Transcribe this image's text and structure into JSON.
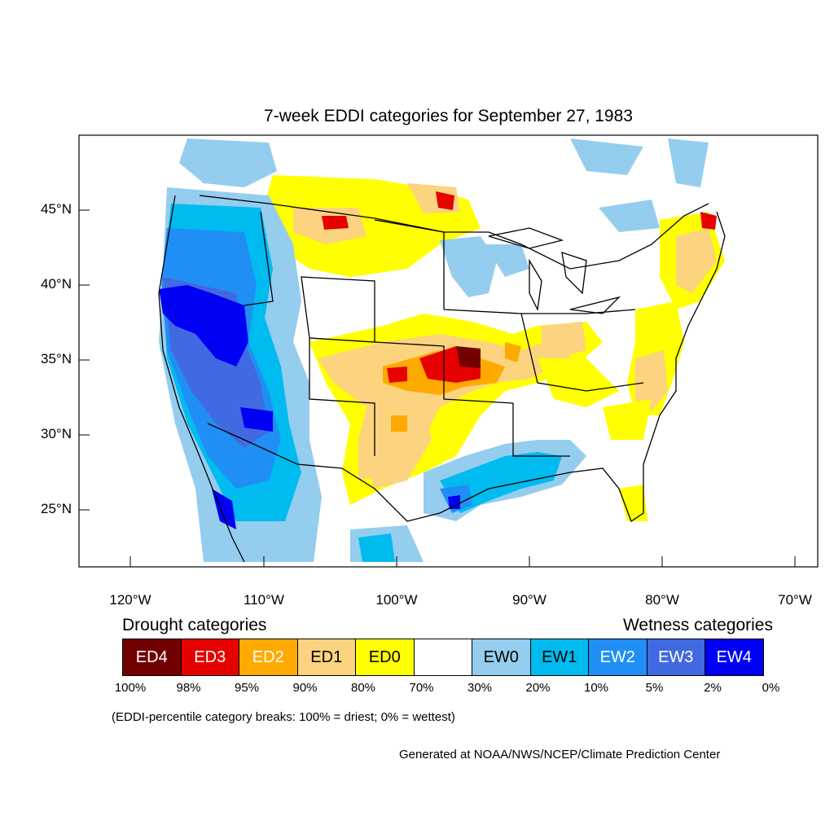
{
  "title": "7-week EDDI categories for September 27, 1983",
  "latitude_labels": [
    "45°N",
    "40°N",
    "35°N",
    "30°N",
    "25°N"
  ],
  "longitude_labels": [
    "120°W",
    "110°W",
    "100°W",
    "90°W",
    "80°W",
    "70°W"
  ],
  "legend": {
    "drought_heading": "Drought categories",
    "wetness_heading": "Wetness categories",
    "categories": [
      {
        "label": "ED4",
        "color": "#730000",
        "text_color": "#ffffff"
      },
      {
        "label": "ED3",
        "color": "#e60000",
        "text_color": "#ffffff"
      },
      {
        "label": "ED2",
        "color": "#ffaa00",
        "text_color": "#ffffff"
      },
      {
        "label": "ED1",
        "color": "#fcd37f",
        "text_color": "#000000"
      },
      {
        "label": "ED0",
        "color": "#ffff00",
        "text_color": "#000000"
      },
      {
        "label": "",
        "color": "#ffffff",
        "text_color": "#000000"
      },
      {
        "label": "EW0",
        "color": "#94cdee",
        "text_color": "#000000"
      },
      {
        "label": "EW1",
        "color": "#00bbf0",
        "text_color": "#000000"
      },
      {
        "label": "EW2",
        "color": "#1f8ff5",
        "text_color": "#ffffff"
      },
      {
        "label": "EW3",
        "color": "#4169e1",
        "text_color": "#ffffff"
      },
      {
        "label": "EW4",
        "color": "#0000f5",
        "text_color": "#ffffff"
      }
    ],
    "percent_breaks": [
      "100%",
      "98%",
      "95%",
      "90%",
      "80%",
      "70%",
      "30%",
      "20%",
      "10%",
      "5%",
      "2%",
      "0%"
    ]
  },
  "note": "(EDDI-percentile category breaks: 100% = driest; 0% = wettest)",
  "credit": "Generated at NOAA/NWS/NCEP/Climate Prediction Center"
}
